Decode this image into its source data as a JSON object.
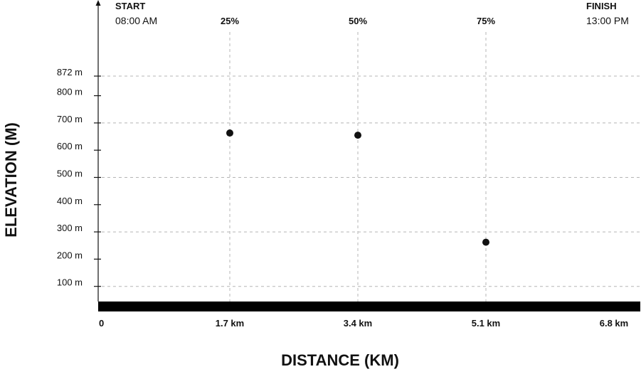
{
  "chart_data": {
    "type": "scatter",
    "xlabel": "DISTANCE (KM)",
    "ylabel": "ELEVATION (M)",
    "xlim": [
      0,
      6.8
    ],
    "ylim": [
      0,
      872
    ],
    "x_ticks": [
      {
        "value": 0,
        "label": "0"
      },
      {
        "value": 1.7,
        "label": "1.7 km"
      },
      {
        "value": 3.4,
        "label": "3.4 km"
      },
      {
        "value": 5.1,
        "label": "5.1 km"
      },
      {
        "value": 6.8,
        "label": "6.8 km"
      }
    ],
    "y_ticks": [
      {
        "value": 872,
        "label": "872 m"
      },
      {
        "value": 800,
        "label": "800 m"
      },
      {
        "value": 700,
        "label": "700 m"
      },
      {
        "value": 600,
        "label": "600 m"
      },
      {
        "value": 500,
        "label": "500 m"
      },
      {
        "value": 400,
        "label": "400 m"
      },
      {
        "value": 300,
        "label": "300 m"
      },
      {
        "value": 200,
        "label": "200 m"
      },
      {
        "value": 100,
        "label": "100 m"
      }
    ],
    "y_grid_values": [
      872,
      700,
      500,
      300,
      100
    ],
    "percent_markers": [
      {
        "value": 1.7,
        "label": "25%"
      },
      {
        "value": 3.4,
        "label": "50%"
      },
      {
        "value": 5.1,
        "label": "75%"
      }
    ],
    "start": {
      "title": "START",
      "time": "08:00 AM"
    },
    "finish": {
      "title": "FINISH",
      "time": "13:00 PM"
    },
    "points": [
      {
        "x": 1.7,
        "y": 663
      },
      {
        "x": 3.4,
        "y": 655
      },
      {
        "x": 5.1,
        "y": 262
      }
    ],
    "point_color": "#111111",
    "baseline_color": "#000000",
    "grid": true
  }
}
